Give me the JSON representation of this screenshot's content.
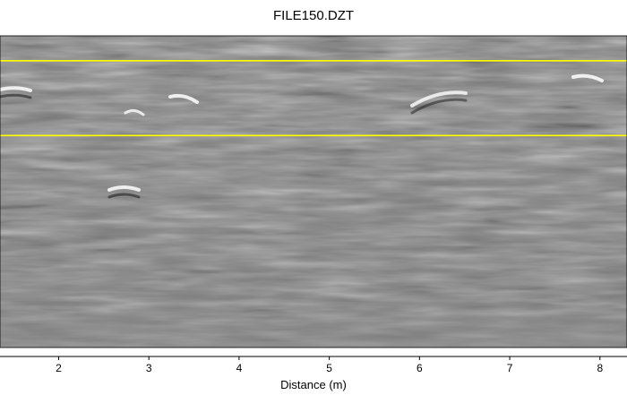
{
  "chart_data": {
    "type": "heatmap",
    "title": "FILE150.DZT",
    "xlabel": "Distance (m)",
    "ylabel": "",
    "xlim": [
      1.35,
      8.3
    ],
    "x_ticks": [
      2,
      3,
      4,
      5,
      6,
      7,
      8
    ],
    "x_tick_labels": [
      "2",
      "3",
      "4",
      "5",
      "6",
      "7",
      "8"
    ],
    "grid": false,
    "colormap": "grayscale",
    "background_color": "#808080",
    "horizontal_markers": [
      {
        "color": "#ffff00",
        "depth_fraction": 0.08
      },
      {
        "color": "#ffff00",
        "depth_fraction": 0.32
      }
    ]
  }
}
